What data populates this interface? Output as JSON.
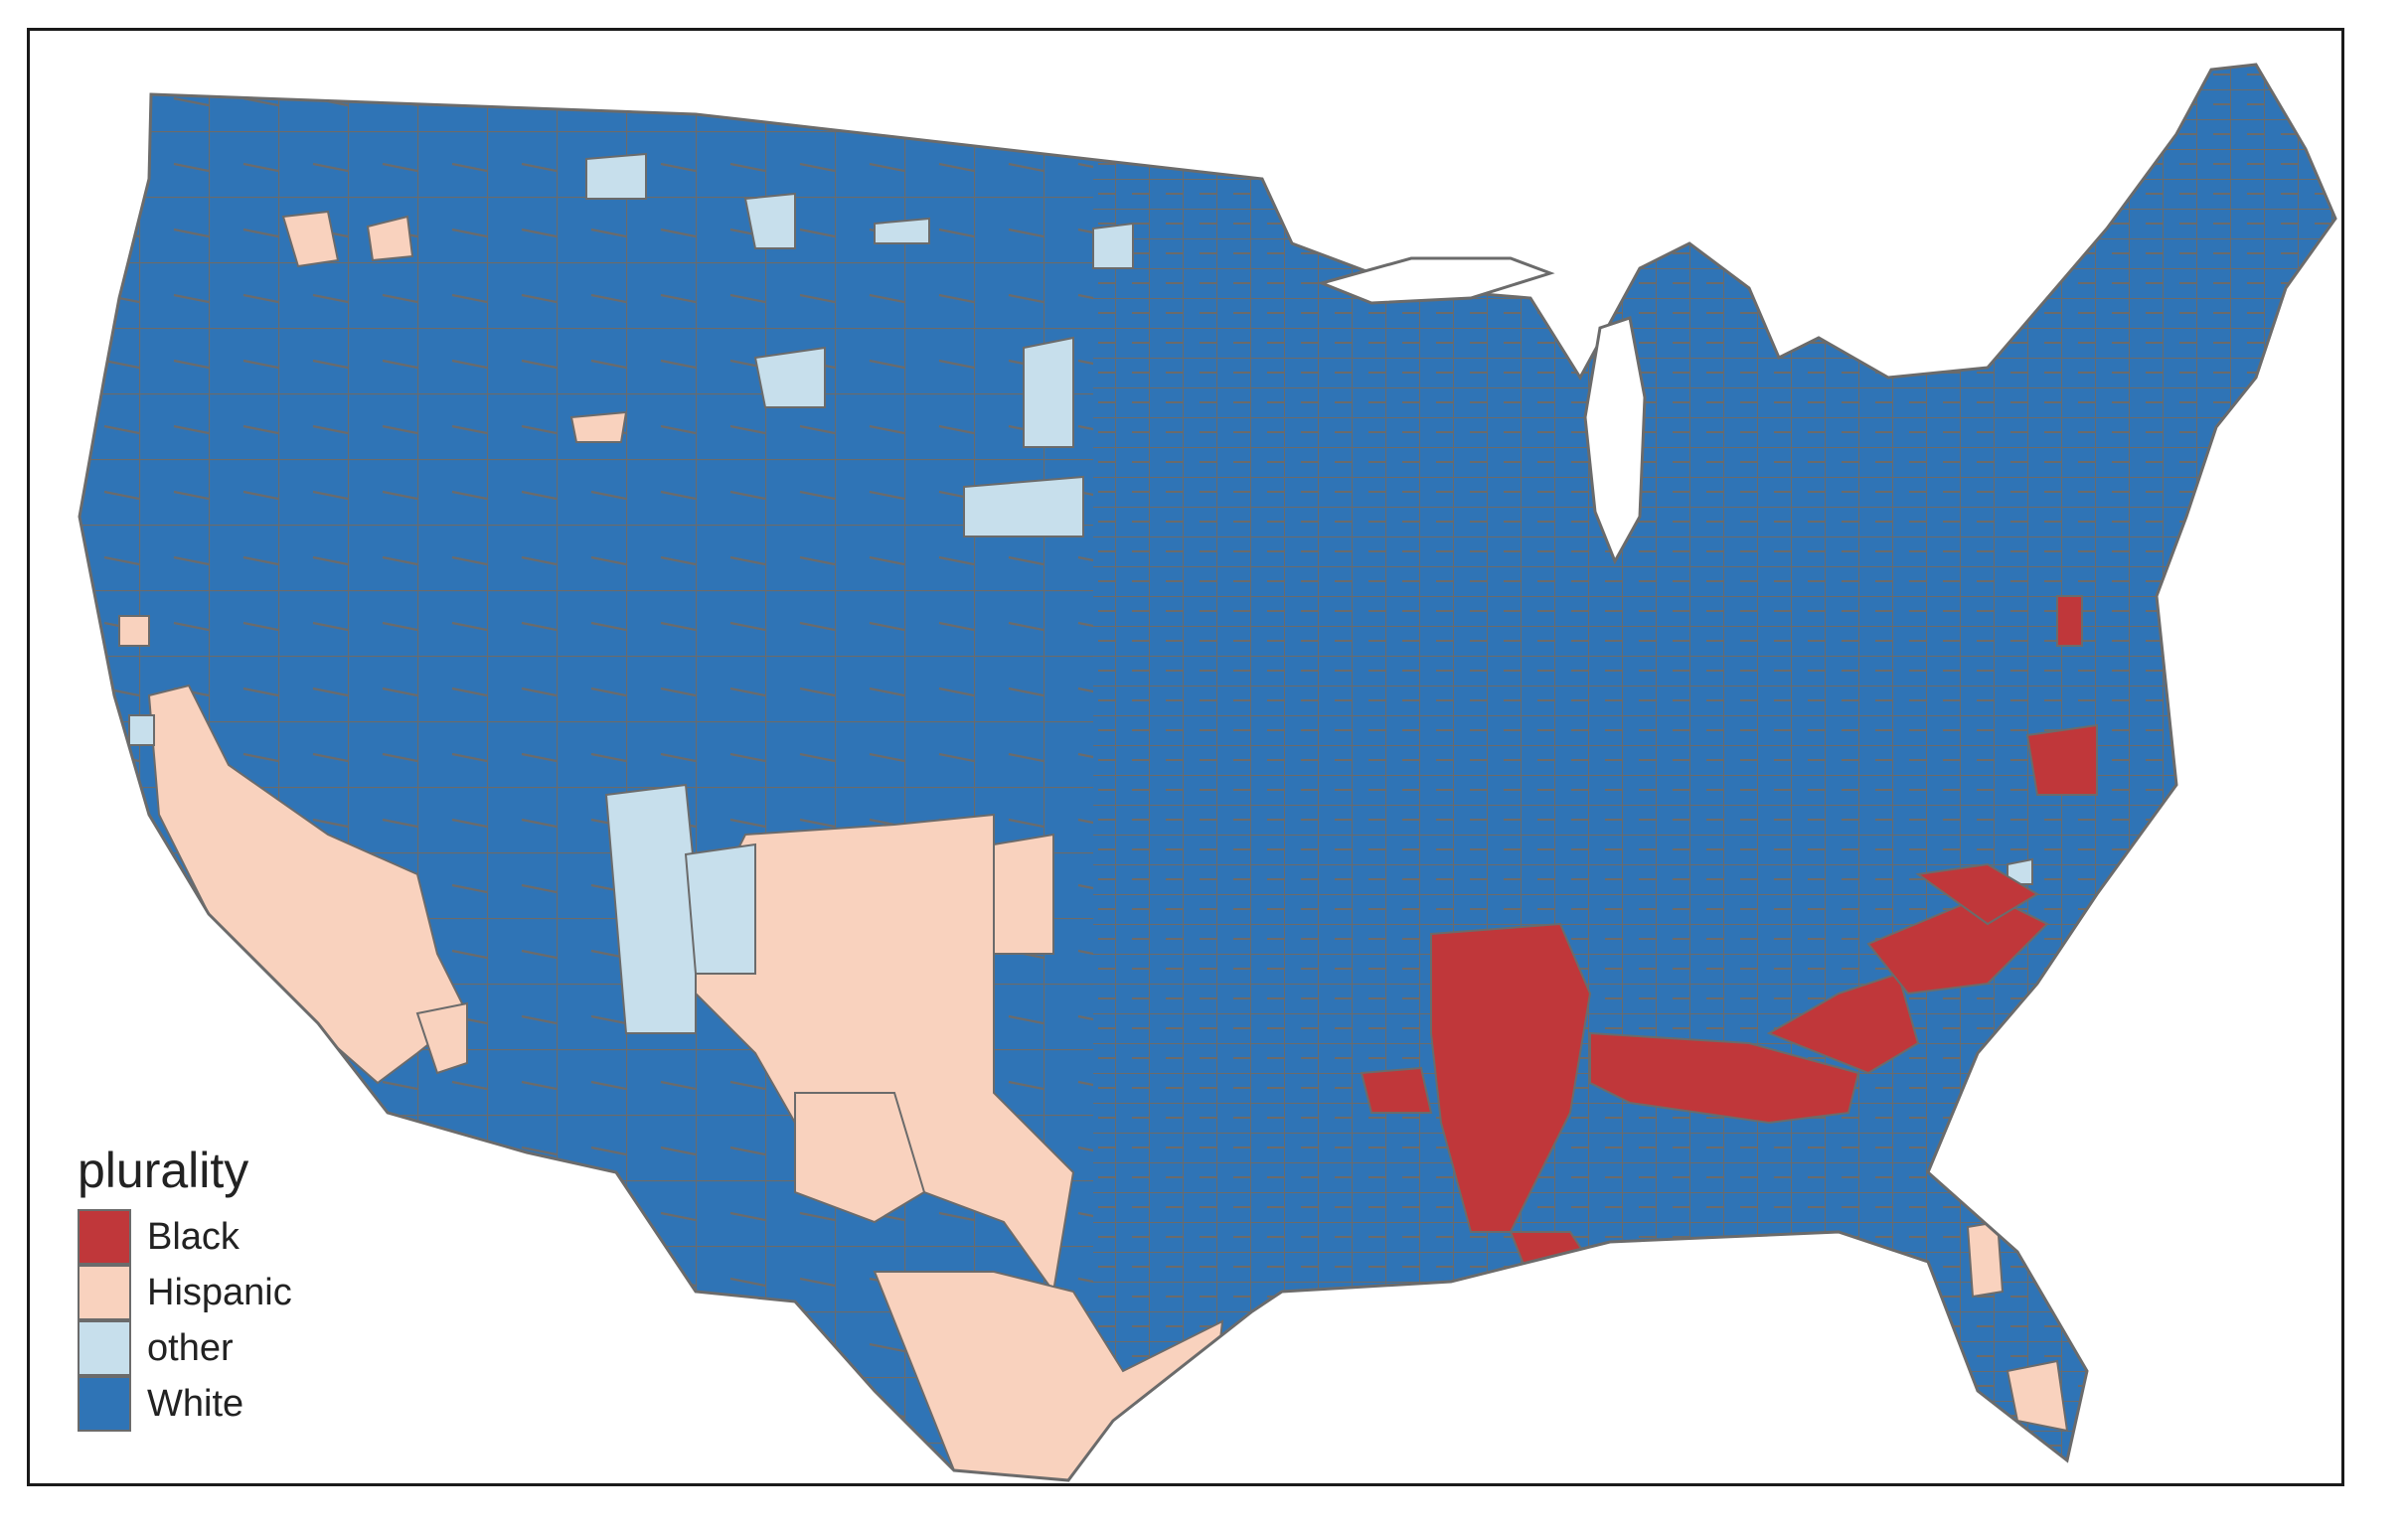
{
  "legend": {
    "title": "plurality",
    "items": [
      {
        "label": "Black",
        "color": "#c0373a"
      },
      {
        "label": "Hispanic",
        "color": "#f9d2be"
      },
      {
        "label": "other",
        "color": "#c7dfec"
      },
      {
        "label": "White",
        "color": "#2f74b6"
      }
    ]
  },
  "map": {
    "border_color": "#6b6b6b",
    "region": "contiguous United States counties"
  }
}
